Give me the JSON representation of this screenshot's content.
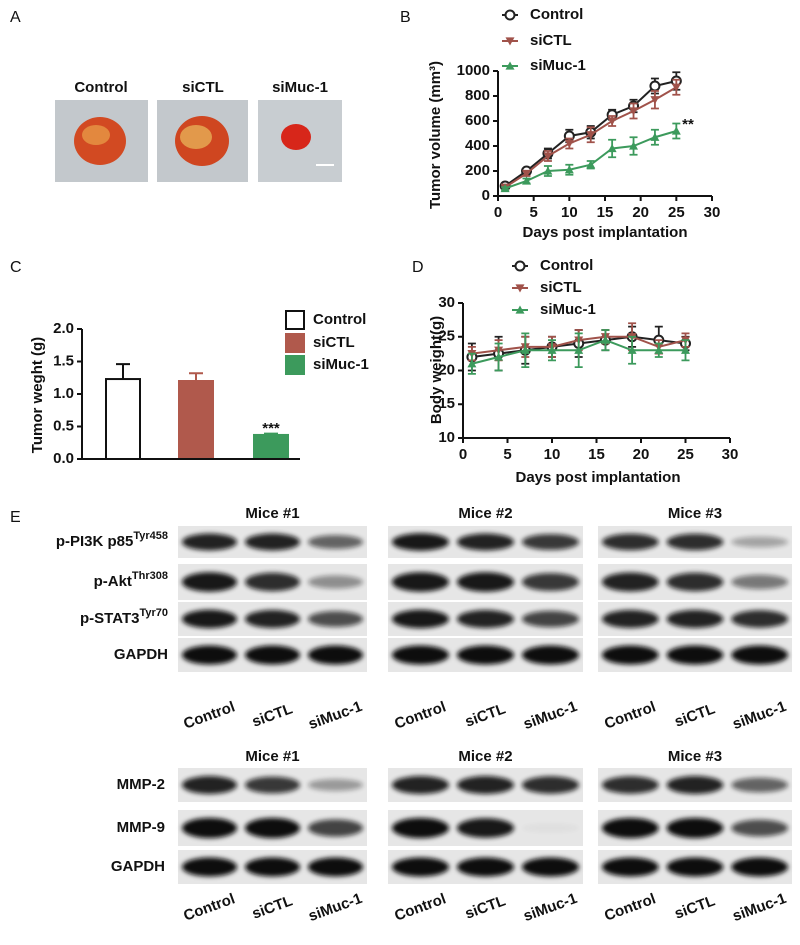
{
  "panel_labels": [
    "A",
    "B",
    "C",
    "D",
    "E"
  ],
  "photo": {
    "labels": [
      "Control",
      "siCTL",
      "siMuc-1"
    ]
  },
  "chart_data": [
    {
      "type": "line",
      "xlabel": "Days post implantation",
      "ylabel": "Tumor volume (mm³)",
      "x": [
        1,
        4,
        7,
        10,
        13,
        16,
        19,
        22,
        25
      ],
      "series": [
        {
          "name": "Control",
          "color": "#222222",
          "marker": "circle",
          "values": [
            80,
            200,
            340,
            480,
            510,
            650,
            720,
            880,
            920
          ],
          "errors": [
            20,
            20,
            40,
            50,
            50,
            40,
            50,
            60,
            70
          ]
        },
        {
          "name": "siCTL",
          "color": "#a0524a",
          "marker": "triangle-down",
          "values": [
            70,
            180,
            320,
            420,
            490,
            600,
            680,
            770,
            870
          ],
          "errors": [
            20,
            20,
            40,
            40,
            60,
            40,
            60,
            70,
            60
          ]
        },
        {
          "name": "siMuc-1",
          "color": "#3c9a5c",
          "marker": "triangle-up",
          "values": [
            60,
            120,
            200,
            210,
            250,
            380,
            400,
            470,
            520
          ],
          "errors": [
            10,
            20,
            40,
            40,
            30,
            70,
            70,
            60,
            60
          ]
        }
      ],
      "xlim": [
        0,
        30
      ],
      "xticks": [
        0,
        5,
        10,
        15,
        20,
        25,
        30
      ],
      "ylim": [
        0,
        1000
      ],
      "yticks": [
        0,
        200,
        400,
        600,
        800,
        1000
      ],
      "annotation": "**"
    },
    {
      "type": "bar",
      "ylabel": "Tumor weght (g)",
      "categories": [
        "Control",
        "siCTL",
        "siMuc-1"
      ],
      "values": [
        1.23,
        1.2,
        0.37
      ],
      "errors": [
        0.23,
        0.12,
        0.02
      ],
      "colors": [
        "#ffffff",
        "#b0594c",
        "#3c9a5c"
      ],
      "ylim": [
        0,
        2
      ],
      "yticks": [
        {
          "value": 0,
          "label": "0.0"
        },
        0.5,
        {
          "value": 1,
          "label": "1.0"
        },
        1.5,
        {
          "value": 2,
          "label": "2.0"
        }
      ],
      "annotation": "***"
    },
    {
      "type": "line",
      "xlabel": "Days post implantation",
      "ylabel": "Body weight(g)",
      "x": [
        1,
        4,
        7,
        10,
        13,
        16,
        19,
        22,
        25
      ],
      "series": [
        {
          "name": "Control",
          "color": "#222222",
          "marker": "circle",
          "values": [
            22,
            22.5,
            23,
            23.5,
            24,
            24.5,
            25,
            24.5,
            24
          ],
          "errors": [
            2,
            2.5,
            2,
            1.5,
            2,
            1.5,
            1.5,
            2,
            1
          ]
        },
        {
          "name": "siCTL",
          "color": "#a0524a",
          "marker": "triangle-down",
          "values": [
            22.5,
            23,
            23.5,
            23.5,
            24.5,
            25,
            25,
            23.5,
            24.5
          ],
          "errors": [
            1,
            1.5,
            1.5,
            1.5,
            1.5,
            1,
            2,
            1,
            1
          ]
        },
        {
          "name": "siMuc-1",
          "color": "#3c9a5c",
          "marker": "triangle-up",
          "values": [
            21,
            22,
            23,
            23,
            23,
            24.5,
            23,
            23,
            23
          ],
          "errors": [
            1.5,
            2,
            2.5,
            1.5,
            2.5,
            1.5,
            2,
            1,
            1.5
          ]
        }
      ],
      "xlim": [
        0,
        30
      ],
      "xticks": [
        0,
        5,
        10,
        15,
        20,
        25,
        30
      ],
      "ylim": [
        10,
        30
      ],
      "yticks": [
        10,
        15,
        20,
        25,
        30
      ]
    }
  ],
  "blots": [
    {
      "groups": [
        "Mice #1",
        "Mice #2",
        "Mice #3"
      ],
      "rows": [
        {
          "name": "p-PI3K  p85",
          "sup": "Tyr458"
        },
        {
          "name": "p-Akt",
          "sup": "Thr308"
        },
        {
          "name": "p-STAT3",
          "sup": "Tyr70"
        },
        {
          "name": "GAPDH"
        }
      ],
      "lanes": [
        "Control",
        "siCTL",
        "siMuc-1"
      ]
    },
    {
      "groups": [
        "Mice #1",
        "Mice #2",
        "Mice #3"
      ],
      "rows": [
        {
          "name": "MMP-2"
        },
        {
          "name": "MMP-9"
        },
        {
          "name": "GAPDH"
        }
      ],
      "lanes": [
        "Control",
        "siCTL",
        "siMuc-1"
      ]
    }
  ]
}
